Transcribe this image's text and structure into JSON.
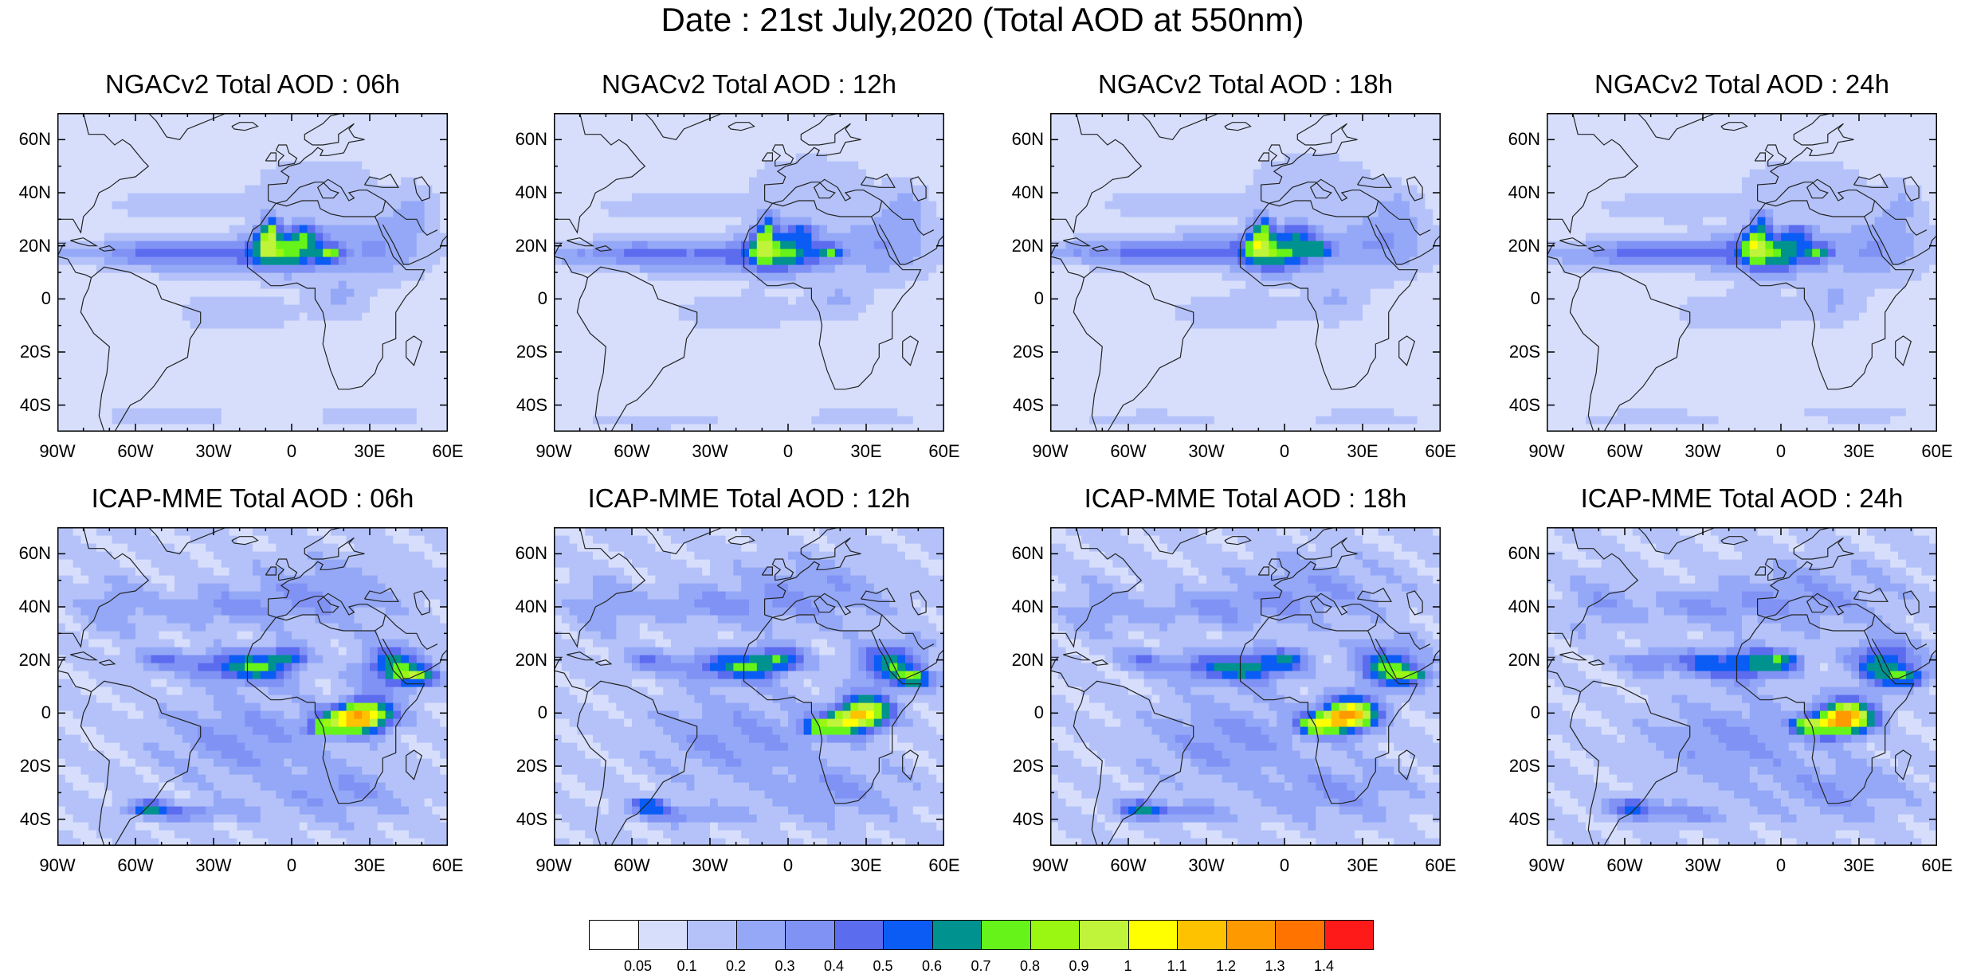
{
  "title": "Date : 21st July,2020 (Total AOD at 550nm)",
  "panels": [
    {
      "title": "NGACv2 Total AOD : 06h",
      "model": "ngac",
      "seed": 1
    },
    {
      "title": "NGACv2 Total AOD : 12h",
      "model": "ngac",
      "seed": 2
    },
    {
      "title": "NGACv2 Total AOD : 18h",
      "model": "ngac",
      "seed": 3
    },
    {
      "title": "NGACv2 Total AOD : 24h",
      "model": "ngac",
      "seed": 4
    },
    {
      "title": "ICAP-MME Total AOD : 06h",
      "model": "icap",
      "seed": 5
    },
    {
      "title": "ICAP-MME Total AOD : 12h",
      "model": "icap",
      "seed": 6
    },
    {
      "title": "ICAP-MME Total AOD : 18h",
      "model": "icap",
      "seed": 7
    },
    {
      "title": "ICAP-MME Total AOD : 24h",
      "model": "icap",
      "seed": 8
    }
  ],
  "lat_ticks": [
    "60N",
    "40N",
    "20N",
    "0",
    "20S",
    "40S"
  ],
  "lon_ticks": [
    "90W",
    "60W",
    "30W",
    "0",
    "30E",
    "60E"
  ],
  "colorbar": {
    "labels": [
      "0.05",
      "0.1",
      "0.2",
      "0.3",
      "0.4",
      "0.5",
      "0.6",
      "0.7",
      "0.8",
      "0.9",
      "1",
      "1.1",
      "1.2",
      "1.3",
      "1.4"
    ],
    "colors": [
      "#ffffff",
      "#d7defc",
      "#b4c2f9",
      "#94a8f7",
      "#8192f5",
      "#5c6cef",
      "#0a5cf5",
      "#00928f",
      "#66f31a",
      "#99f712",
      "#bff43a",
      "#ffff00",
      "#ffc200",
      "#ff9900",
      "#ff7400",
      "#ff1a1a"
    ]
  }
}
